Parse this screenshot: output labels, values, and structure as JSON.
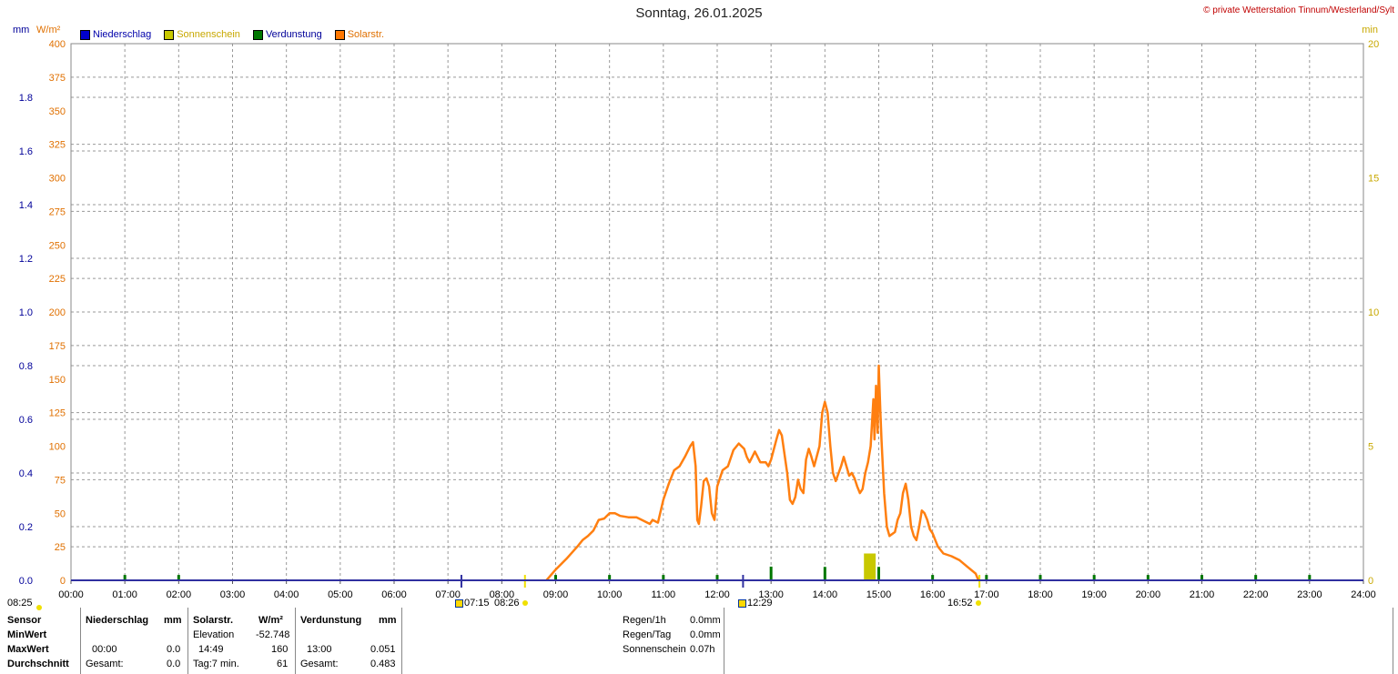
{
  "header": {
    "title": "Sonntag, 26.01.2025",
    "copyright": "© private Wetterstation Tinnum/Westerland/Sylt",
    "unit_mm": "mm",
    "unit_wm2": "W/m²",
    "unit_min": "min"
  },
  "legend": [
    {
      "label": "Niederschlag",
      "color": "#0000cc"
    },
    {
      "label": "Sonnenschein",
      "color": "#c8c800"
    },
    {
      "label": "Verdunstung",
      "color": "#007700"
    },
    {
      "label": "Solarstr.",
      "color": "#ff7700"
    }
  ],
  "colors": {
    "axis_mm": "#000099",
    "axis_wm2": "#e07000",
    "axis_min": "#c8a800",
    "solar_line": "#ff7f10",
    "sunshine_bar": "#c8c800",
    "evaporation_bar": "#007700",
    "grid": "#999999"
  },
  "chart_data": {
    "type": "line",
    "x_range": [
      0,
      24
    ],
    "x_tick_labels": [
      "00:00",
      "01:00",
      "02:00",
      "03:00",
      "04:00",
      "05:00",
      "06:00",
      "07:00",
      "08:00",
      "09:00",
      "10:00",
      "11:00",
      "12:00",
      "13:00",
      "14:00",
      "15:00",
      "16:00",
      "17:00",
      "18:00",
      "19:00",
      "20:00",
      "21:00",
      "22:00",
      "23:00",
      "24:00"
    ],
    "y_left_mm": {
      "range": [
        0,
        2.0
      ],
      "ticks": [
        "0.0",
        "0.2",
        "0.4",
        "0.6",
        "0.8",
        "1.0",
        "1.2",
        "1.4",
        "1.6",
        "1.8"
      ]
    },
    "y_left_wm2": {
      "range": [
        0,
        400
      ],
      "ticks": [
        "0",
        "25",
        "50",
        "75",
        "100",
        "125",
        "150",
        "175",
        "200",
        "225",
        "250",
        "275",
        "300",
        "325",
        "350",
        "375",
        "400"
      ]
    },
    "y_right_min": {
      "range": [
        0,
        20
      ],
      "ticks": [
        "0",
        "5",
        "10",
        "15",
        "20"
      ]
    },
    "grid": true,
    "series": [
      {
        "name": "Solarstr.",
        "unit": "W/m²",
        "points": [
          [
            8.83,
            0
          ],
          [
            9.0,
            8
          ],
          [
            9.2,
            16
          ],
          [
            9.4,
            25
          ],
          [
            9.5,
            30
          ],
          [
            9.6,
            33
          ],
          [
            9.7,
            37
          ],
          [
            9.8,
            45
          ],
          [
            9.9,
            46
          ],
          [
            10.0,
            50
          ],
          [
            10.1,
            50
          ],
          [
            10.2,
            48
          ],
          [
            10.35,
            47
          ],
          [
            10.5,
            47
          ],
          [
            10.6,
            45
          ],
          [
            10.75,
            42
          ],
          [
            10.8,
            45
          ],
          [
            10.9,
            43
          ],
          [
            11.0,
            60
          ],
          [
            11.1,
            72
          ],
          [
            11.2,
            82
          ],
          [
            11.3,
            85
          ],
          [
            11.4,
            92
          ],
          [
            11.5,
            100
          ],
          [
            11.55,
            103
          ],
          [
            11.6,
            85
          ],
          [
            11.63,
            45
          ],
          [
            11.66,
            42
          ],
          [
            11.7,
            55
          ],
          [
            11.75,
            74
          ],
          [
            11.8,
            76
          ],
          [
            11.85,
            70
          ],
          [
            11.9,
            50
          ],
          [
            11.95,
            45
          ],
          [
            12.0,
            70
          ],
          [
            12.1,
            82
          ],
          [
            12.2,
            85
          ],
          [
            12.3,
            97
          ],
          [
            12.4,
            102
          ],
          [
            12.5,
            98
          ],
          [
            12.55,
            92
          ],
          [
            12.6,
            88
          ],
          [
            12.65,
            92
          ],
          [
            12.7,
            96
          ],
          [
            12.75,
            92
          ],
          [
            12.8,
            88
          ],
          [
            12.9,
            88
          ],
          [
            12.95,
            85
          ],
          [
            13.0,
            90
          ],
          [
            13.1,
            105
          ],
          [
            13.15,
            112
          ],
          [
            13.2,
            108
          ],
          [
            13.3,
            80
          ],
          [
            13.35,
            60
          ],
          [
            13.4,
            57
          ],
          [
            13.45,
            62
          ],
          [
            13.5,
            75
          ],
          [
            13.55,
            68
          ],
          [
            13.6,
            65
          ],
          [
            13.65,
            90
          ],
          [
            13.7,
            98
          ],
          [
            13.75,
            92
          ],
          [
            13.8,
            85
          ],
          [
            13.9,
            100
          ],
          [
            13.95,
            125
          ],
          [
            14.0,
            133
          ],
          [
            14.05,
            125
          ],
          [
            14.1,
            100
          ],
          [
            14.15,
            80
          ],
          [
            14.2,
            74
          ],
          [
            14.3,
            85
          ],
          [
            14.35,
            92
          ],
          [
            14.4,
            85
          ],
          [
            14.45,
            78
          ],
          [
            14.5,
            80
          ],
          [
            14.55,
            76
          ],
          [
            14.6,
            70
          ],
          [
            14.65,
            65
          ],
          [
            14.7,
            68
          ],
          [
            14.75,
            80
          ],
          [
            14.8,
            88
          ],
          [
            14.85,
            100
          ],
          [
            14.9,
            135
          ],
          [
            14.92,
            105
          ],
          [
            14.95,
            145
          ],
          [
            14.98,
            110
          ],
          [
            15.0,
            160
          ],
          [
            15.03,
            125
          ],
          [
            15.05,
            105
          ],
          [
            15.1,
            65
          ],
          [
            15.15,
            40
          ],
          [
            15.2,
            33
          ],
          [
            15.3,
            36
          ],
          [
            15.35,
            45
          ],
          [
            15.4,
            50
          ],
          [
            15.45,
            65
          ],
          [
            15.5,
            72
          ],
          [
            15.55,
            60
          ],
          [
            15.6,
            40
          ],
          [
            15.65,
            33
          ],
          [
            15.7,
            30
          ],
          [
            15.75,
            40
          ],
          [
            15.8,
            52
          ],
          [
            15.85,
            50
          ],
          [
            15.9,
            45
          ],
          [
            15.95,
            38
          ],
          [
            16.0,
            35
          ],
          [
            16.05,
            30
          ],
          [
            16.1,
            25
          ],
          [
            16.2,
            20
          ],
          [
            16.35,
            18
          ],
          [
            16.5,
            15
          ],
          [
            16.65,
            10
          ],
          [
            16.8,
            5
          ],
          [
            16.85,
            0
          ]
        ]
      },
      {
        "name": "Sonnenschein",
        "unit": "min",
        "bars": [
          [
            14.75,
            1.0
          ],
          [
            14.8,
            1.0
          ],
          [
            14.85,
            1.0
          ],
          [
            14.9,
            1.0
          ]
        ]
      },
      {
        "name": "Verdunstung",
        "unit": "mm",
        "bars": [
          [
            1.0,
            0.02
          ],
          [
            2.0,
            0.02
          ],
          [
            9.0,
            0.02
          ],
          [
            10.0,
            0.02
          ],
          [
            11.0,
            0.02
          ],
          [
            12.0,
            0.02
          ],
          [
            13.0,
            0.051
          ],
          [
            14.0,
            0.05
          ],
          [
            15.0,
            0.05
          ],
          [
            16.0,
            0.02
          ],
          [
            17.0,
            0.02
          ],
          [
            18.0,
            0.02
          ],
          [
            19.0,
            0.02
          ],
          [
            20.0,
            0.02
          ],
          [
            21.0,
            0.02
          ],
          [
            22.0,
            0.02
          ],
          [
            23.0,
            0.02
          ]
        ]
      },
      {
        "name": "Niederschlag",
        "unit": "mm",
        "bars": []
      }
    ],
    "markers": [
      {
        "time": 7.25,
        "label": "07:15",
        "kind": "sunrise-icon"
      },
      {
        "time": 8.43,
        "label": "08:26",
        "kind": "sun-dot"
      },
      {
        "time": 12.48,
        "label": "12:29",
        "kind": "noon-icon"
      },
      {
        "time": 16.87,
        "label": "16:52",
        "kind": "sun-dot"
      }
    ]
  },
  "footer": {
    "left_time": "08:25",
    "row_labels": [
      "Sensor",
      "MinWert",
      "MaxWert",
      "Durchschnitt"
    ],
    "niederschlag": {
      "header": "Niederschlag",
      "unit": "mm",
      "max_time": "00:00",
      "max_value": "0.0",
      "total_label": "Gesamt:",
      "total_value": "0.0"
    },
    "solar": {
      "header": "Solarstr.",
      "unit": "W/m²",
      "min_label": "Elevation",
      "min_value": "-52.748",
      "max_time": "14:49",
      "max_value": "160",
      "avg_label": "Tag:7 min.",
      "avg_value": "61"
    },
    "verdunstung": {
      "header": "Verdunstung",
      "unit": "mm",
      "max_time": "13:00",
      "max_value": "0.051",
      "total_label": "Gesamt:",
      "total_value": "0.483"
    },
    "stats": [
      {
        "label": "Regen/1h",
        "value": "0.0mm"
      },
      {
        "label": "Regen/Tag",
        "value": "0.0mm"
      },
      {
        "label": "Sonnenschein",
        "value": "0.07h"
      }
    ]
  }
}
